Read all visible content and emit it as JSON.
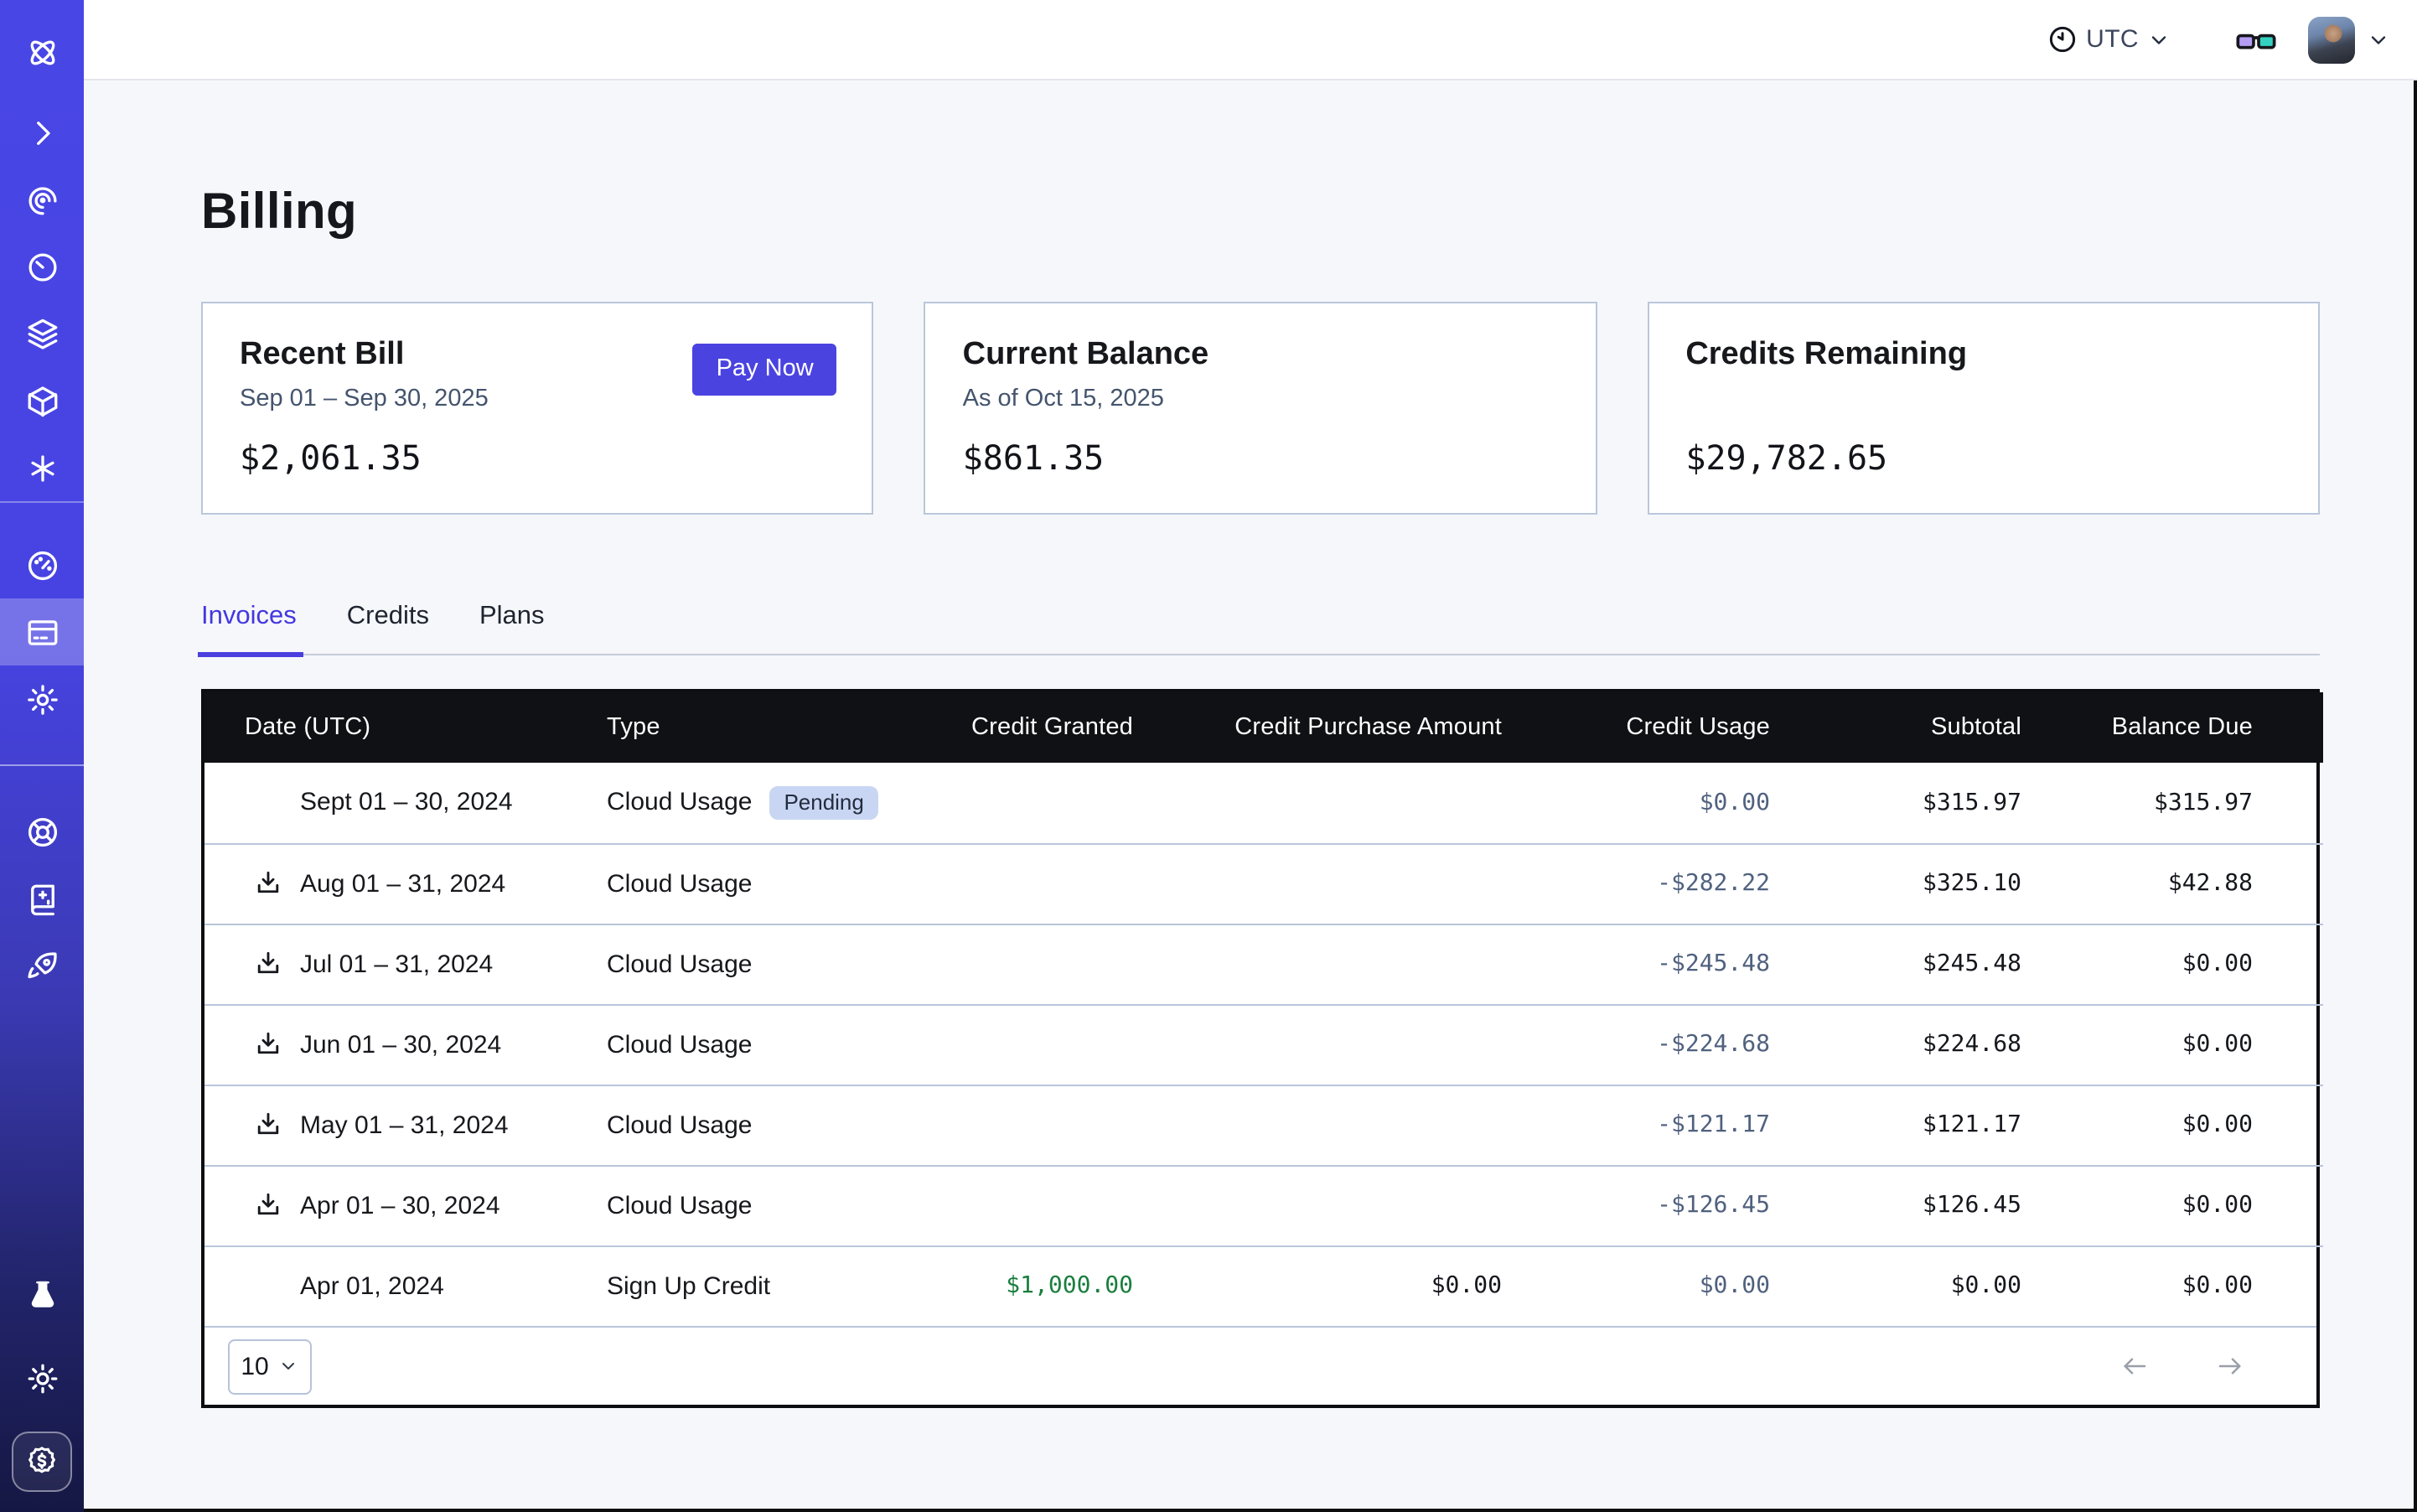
{
  "topbar": {
    "timezone": "UTC"
  },
  "sidebar": {
    "icons": [
      "orbit-logo",
      "chevron-right",
      "spiral",
      "timer",
      "layers",
      "cube",
      "asterisk",
      "gauge",
      "credit-card",
      "gear",
      "lifebuoy",
      "book-sparkles",
      "rocket",
      "flask",
      "sun",
      "dollar-badge"
    ],
    "active_icon": "credit-card"
  },
  "page": {
    "title": "Billing"
  },
  "summary_cards": [
    {
      "title": "Recent Bill",
      "subtitle": "Sep 01 – Sep 30, 2025",
      "amount": "$2,061.35",
      "action_label": "Pay Now"
    },
    {
      "title": "Current Balance",
      "subtitle": "As of Oct 15, 2025",
      "amount": "$861.35"
    },
    {
      "title": "Credits Remaining",
      "subtitle": "",
      "amount": "$29,782.65"
    }
  ],
  "tabs": {
    "items": [
      "Invoices",
      "Credits",
      "Plans"
    ],
    "active": "Invoices"
  },
  "invoices_table": {
    "columns": [
      "Date (UTC)",
      "Type",
      "Credit Granted",
      "Credit Purchase Amount",
      "Credit Usage",
      "Subtotal",
      "Balance Due"
    ],
    "rows": [
      {
        "date": "Sept 01 – 30, 2024",
        "type": "Cloud Usage",
        "status": "Pending",
        "downloadable": false,
        "credit_granted": "",
        "credit_purchase_amount": "",
        "credit_usage": "$0.00",
        "subtotal": "$315.97",
        "balance_due": "$315.97"
      },
      {
        "date": "Aug 01 – 31, 2024",
        "type": "Cloud Usage",
        "status": "",
        "downloadable": true,
        "credit_granted": "",
        "credit_purchase_amount": "",
        "credit_usage": "-$282.22",
        "subtotal": "$325.10",
        "balance_due": "$42.88"
      },
      {
        "date": "Jul 01 – 31, 2024",
        "type": "Cloud Usage",
        "status": "",
        "downloadable": true,
        "credit_granted": "",
        "credit_purchase_amount": "",
        "credit_usage": "-$245.48",
        "subtotal": "$245.48",
        "balance_due": "$0.00"
      },
      {
        "date": "Jun 01 – 30, 2024",
        "type": "Cloud Usage",
        "status": "",
        "downloadable": true,
        "credit_granted": "",
        "credit_purchase_amount": "",
        "credit_usage": "-$224.68",
        "subtotal": "$224.68",
        "balance_due": "$0.00"
      },
      {
        "date": "May 01 – 31, 2024",
        "type": "Cloud Usage",
        "status": "",
        "downloadable": true,
        "credit_granted": "",
        "credit_purchase_amount": "",
        "credit_usage": "-$121.17",
        "subtotal": "$121.17",
        "balance_due": "$0.00"
      },
      {
        "date": "Apr 01 – 30, 2024",
        "type": "Cloud Usage",
        "status": "",
        "downloadable": true,
        "credit_granted": "",
        "credit_purchase_amount": "",
        "credit_usage": "-$126.45",
        "subtotal": "$126.45",
        "balance_due": "$0.00"
      },
      {
        "date": "Apr 01, 2024",
        "type": "Sign Up Credit",
        "status": "",
        "downloadable": false,
        "credit_granted": "$1,000.00",
        "credit_purchase_amount": "$0.00",
        "credit_usage": "$0.00",
        "subtotal": "$0.00",
        "balance_due": "$0.00"
      }
    ]
  },
  "pagination": {
    "page_size": "10"
  },
  "colors": {
    "accent": "#4b43e0",
    "sidebar_top": "#4946e6",
    "sidebar_bottom": "#151743",
    "table_header_bg": "#101114",
    "credit_usage_text": "#50617f",
    "credit_granted_green": "#1a7e3e",
    "pending_badge_bg": "#c9d6f3",
    "page_bg": "#f6f7fa"
  }
}
